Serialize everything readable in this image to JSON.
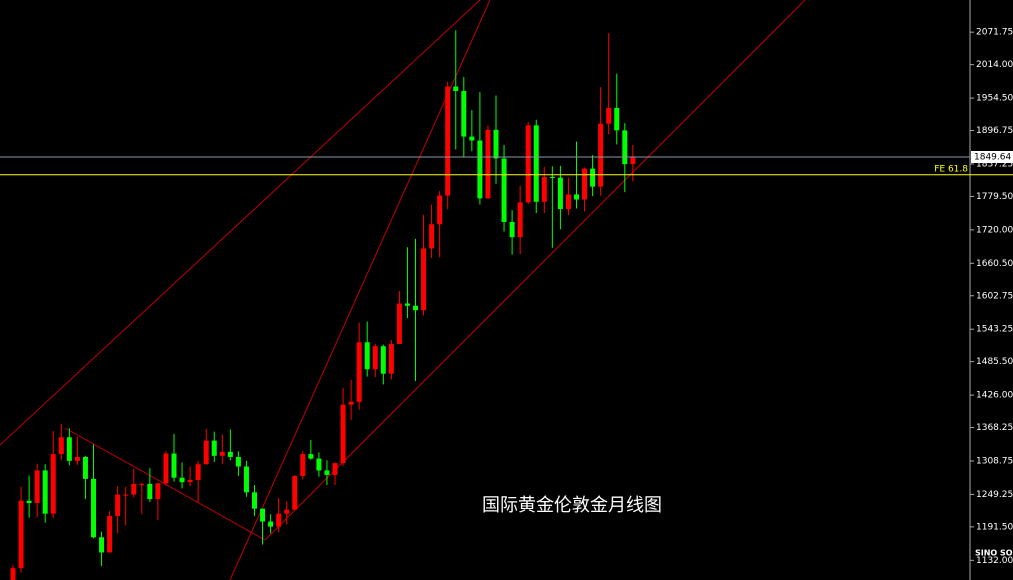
{
  "chart_data": {
    "type": "candlestick",
    "title": "国际黄金伦敦金月线图",
    "logo": "SINO SOUND",
    "up_color": "#ff0000",
    "down_color": "#00ff00",
    "ylim": [
      1097,
      2129
    ],
    "yticks": [
      {
        "value": 2071.75,
        "label": "2071.75"
      },
      {
        "value": 2014,
        "label": "2014.00"
      },
      {
        "value": 1954.5,
        "label": "1954.50"
      },
      {
        "value": 1896.75,
        "label": "1896.75"
      },
      {
        "value": 1837.25,
        "label": "1837.25"
      },
      {
        "value": 1779.5,
        "label": "1779.50"
      },
      {
        "value": 1720,
        "label": "1720.00"
      },
      {
        "value": 1660.5,
        "label": "1660.50"
      },
      {
        "value": 1602.75,
        "label": "1602.75"
      },
      {
        "value": 1543.25,
        "label": "1543.25"
      },
      {
        "value": 1485.5,
        "label": "1485.50"
      },
      {
        "value": 1426,
        "label": "1426.00"
      },
      {
        "value": 1368.25,
        "label": "1368.25"
      },
      {
        "value": 1308.75,
        "label": "1308.75"
      },
      {
        "value": 1249.25,
        "label": "1249.25"
      },
      {
        "value": 1191.5,
        "label": "1191.50"
      },
      {
        "value": 1132,
        "label": "1132.00"
      }
    ],
    "price_line": 1849.64,
    "fe_line": {
      "value": 1818,
      "label": "FE 61.8"
    },
    "open": [
      1061,
      1118,
      1238,
      1234,
      1292,
      1215,
      1321,
      1351,
      1309,
      1316,
      1277,
      1173,
      1146,
      1211,
      1249,
      1249,
      1268,
      1268,
      1241,
      1269,
      1322,
      1279,
      1271,
      1275,
      1303,
      1345,
      1318,
      1325,
      1316,
      1299,
      1253,
      1224,
      1201,
      1192,
      1215,
      1222,
      1282,
      1321,
      1313,
      1292,
      1284,
      1305,
      1409,
      1414,
      1520,
      1472,
      1513,
      1464,
      1517,
      1589,
      1585,
      1577,
      1687,
      1730,
      1781,
      1975,
      1967,
      1886,
      1879,
      1776,
      1898,
      1847,
      1734,
      1707,
      1769,
      1906,
      1770,
      1814,
      1813,
      1757,
      1783,
      1774,
      1829,
      1797,
      1909,
      1937,
      1897,
      1837
    ],
    "high": [
      1124,
      1263,
      1283,
      1304,
      1303,
      1362,
      1375,
      1367,
      1352,
      1318,
      1338,
      1183,
      1220,
      1264,
      1263,
      1295,
      1270,
      1296,
      1270,
      1326,
      1357,
      1306,
      1299,
      1309,
      1366,
      1361,
      1356,
      1365,
      1326,
      1309,
      1266,
      1222,
      1214,
      1243,
      1237,
      1284,
      1326,
      1346,
      1324,
      1310,
      1306,
      1439,
      1453,
      1555,
      1557,
      1517,
      1516,
      1524,
      1611,
      1689,
      1704,
      1747,
      1765,
      1789,
      1984,
      2075,
      1992,
      1933,
      1965,
      1906,
      1959,
      1871,
      1755,
      1798,
      1912,
      1916,
      1832,
      1833,
      1834,
      1813,
      1877,
      1831,
      1853,
      1974,
      2070,
      1998,
      1910,
      1871
    ],
    "low": [
      1061,
      1110,
      1208,
      1208,
      1199,
      1207,
      1310,
      1301,
      1302,
      1241,
      1171,
      1122,
      1146,
      1180,
      1194,
      1244,
      1214,
      1236,
      1204,
      1265,
      1272,
      1260,
      1264,
      1236,
      1302,
      1307,
      1303,
      1310,
      1282,
      1245,
      1211,
      1160,
      1180,
      1182,
      1196,
      1221,
      1276,
      1311,
      1281,
      1266,
      1266,
      1300,
      1382,
      1400,
      1459,
      1458,
      1445,
      1454,
      1517,
      1563,
      1451,
      1568,
      1670,
      1671,
      1757,
      1863,
      1849,
      1860,
      1765,
      1775,
      1802,
      1717,
      1676,
      1677,
      1766,
      1750,
      1750,
      1688,
      1721,
      1746,
      1758,
      1753,
      1780,
      1781,
      1890,
      1872,
      1787,
      1806
    ],
    "close": [
      1118,
      1238,
      1234,
      1292,
      1215,
      1321,
      1351,
      1309,
      1316,
      1277,
      1173,
      1146,
      1211,
      1249,
      1249,
      1268,
      1268,
      1241,
      1269,
      1322,
      1279,
      1271,
      1275,
      1303,
      1345,
      1318,
      1325,
      1316,
      1299,
      1253,
      1224,
      1201,
      1192,
      1215,
      1222,
      1282,
      1321,
      1313,
      1292,
      1284,
      1305,
      1409,
      1414,
      1520,
      1472,
      1513,
      1464,
      1517,
      1589,
      1585,
      1577,
      1687,
      1730,
      1781,
      1975,
      1967,
      1886,
      1879,
      1776,
      1898,
      1847,
      1734,
      1707,
      1769,
      1906,
      1770,
      1814,
      1813,
      1757,
      1783,
      1774,
      1829,
      1797,
      1909,
      1937,
      1897,
      1837,
      1850
    ]
  }
}
